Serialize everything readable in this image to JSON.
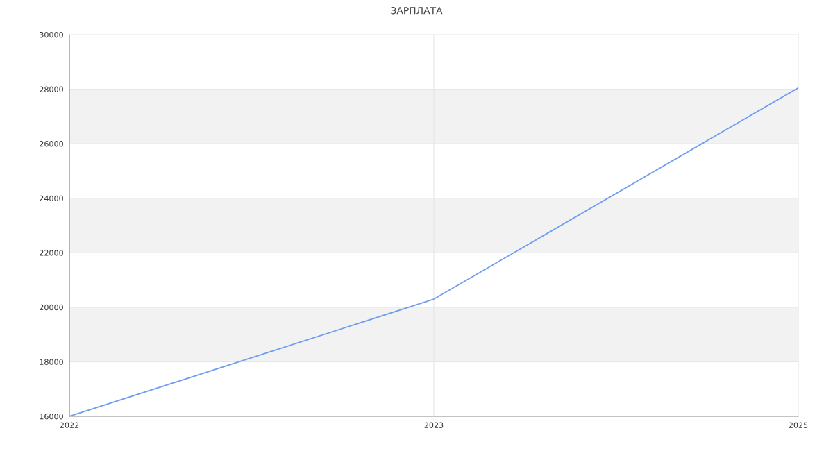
{
  "chart_data": {
    "type": "line",
    "title": "ЗАРПЛАТА",
    "categories": [
      "2022",
      "2023",
      "2025"
    ],
    "series": [
      {
        "color": "#6f9df0",
        "values": [
          16000,
          20300,
          28050
        ]
      }
    ],
    "ylim": [
      16000,
      30000
    ],
    "yticks": [
      16000,
      18000,
      20000,
      22000,
      24000,
      26000,
      28000,
      30000
    ],
    "bands": [
      {
        "axis": "y",
        "from": 18000,
        "to": 20000,
        "color": "#f2f2f2"
      },
      {
        "axis": "y",
        "from": 22000,
        "to": 24000,
        "color": "#f2f2f2"
      },
      {
        "axis": "y",
        "from": 26000,
        "to": 28000,
        "color": "#f2f2f2"
      }
    ],
    "grid": true,
    "legend": false,
    "marker": "none",
    "line_style": "solid"
  }
}
